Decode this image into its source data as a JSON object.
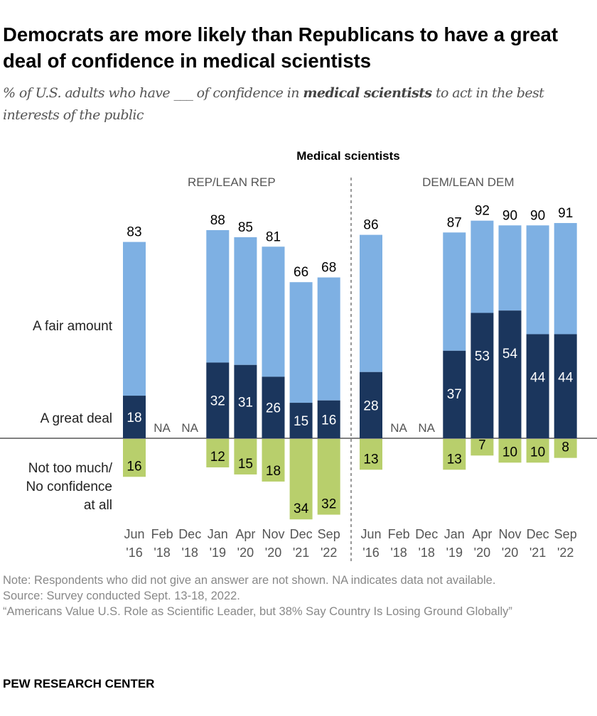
{
  "title": "Democrats are more likely than Republicans to have a great deal of confidence in medical scientists",
  "subtitle": {
    "before": "% of U.S. adults who have ___ of confidence in ",
    "bold": "medical scientists",
    "after": " to act in the best interests of the public"
  },
  "chart_data": {
    "type": "bar",
    "title": "Medical scientists",
    "row_labels": {
      "fair": "A fair amount",
      "great": "A great deal",
      "not": "Not too much/ No confidence at all"
    },
    "na_label": "NA",
    "categories": [
      [
        "Jun",
        "'16"
      ],
      [
        "Feb",
        "'18"
      ],
      [
        "Dec",
        "'18"
      ],
      [
        "Jan",
        "'19"
      ],
      [
        "Apr",
        "'20"
      ],
      [
        "Nov",
        "'20"
      ],
      [
        "Dec",
        "'21"
      ],
      [
        "Sep",
        "'22"
      ]
    ],
    "colors": {
      "great": "#1b365d",
      "fair": "#7eb0e3",
      "not": "#b8cf6c"
    },
    "panels": [
      {
        "name": "REP/LEAN REP",
        "total": [
          83,
          null,
          null,
          88,
          85,
          81,
          66,
          68
        ],
        "great_deal": [
          18,
          null,
          null,
          32,
          31,
          26,
          15,
          16
        ],
        "not_too_much": [
          16,
          null,
          null,
          12,
          15,
          18,
          34,
          32
        ]
      },
      {
        "name": "DEM/LEAN DEM",
        "total": [
          86,
          null,
          null,
          87,
          92,
          90,
          90,
          91
        ],
        "great_deal": [
          28,
          null,
          null,
          37,
          53,
          54,
          44,
          44
        ],
        "not_too_much": [
          13,
          null,
          null,
          13,
          7,
          10,
          10,
          8
        ]
      }
    ]
  },
  "notes": {
    "note": "Note: Respondents who did not give an answer are not shown. NA indicates data not available.",
    "source": "Source: Survey conducted Sept. 13-18, 2022.",
    "report": "“Americans Value U.S. Role as Scientific Leader, but 38% Say Country Is Losing Ground Globally”"
  },
  "logo": "PEW RESEARCH CENTER"
}
